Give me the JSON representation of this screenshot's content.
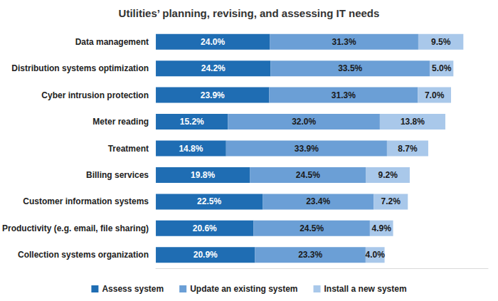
{
  "chart_data": {
    "type": "bar",
    "title": "Utilities’ planning, revising, and assessing IT needs",
    "orientation": "horizontal",
    "stacked": true,
    "data_labels": true,
    "tick_labels": "y",
    "grid": false,
    "legend": "bottom",
    "xlim": [
      0,
      70
    ],
    "categories": [
      "Data management",
      "Distribution systems optimization",
      "Cyber intrusion protection",
      "Meter reading",
      "Treatment",
      "Billing services",
      "Customer information systems",
      "Productivity (e.g. email, file sharing)",
      "Collection systems organization"
    ],
    "series": [
      {
        "name": "Assess system",
        "color": "#1f6db3",
        "values": [
          24.0,
          24.2,
          23.9,
          15.2,
          14.8,
          19.8,
          22.5,
          20.6,
          20.9
        ],
        "value_labels": [
          "24.0%",
          "24.2%",
          "23.9%",
          "15.2%",
          "14.8%",
          "19.8%",
          "22.5%",
          "20.6%",
          "20.9%"
        ]
      },
      {
        "name": "Update an existing system",
        "color": "#6b9fd6",
        "values": [
          31.3,
          33.5,
          31.3,
          32.0,
          33.9,
          24.5,
          23.4,
          24.5,
          23.3
        ],
        "value_labels": [
          "31.3%",
          "33.5%",
          "31.3%",
          "32.0%",
          "33.9%",
          "24.5%",
          "23.4%",
          "24.5%",
          "23.3%"
        ]
      },
      {
        "name": "Install a new system",
        "color": "#a9c8ea",
        "values": [
          9.5,
          5.0,
          7.0,
          13.8,
          8.7,
          9.2,
          7.2,
          4.9,
          4.0
        ],
        "value_labels": [
          "9.5%",
          "5.0%",
          "7.0%",
          "13.8%",
          "8.7%",
          "9.2%",
          "7.2%",
          "4.9%",
          "4.0%"
        ]
      }
    ]
  }
}
